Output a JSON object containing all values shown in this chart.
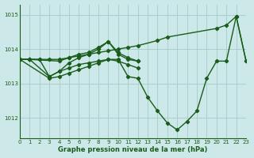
{
  "title": "Graphe pression niveau de la mer (hPa)",
  "bg_color": "#cce8e8",
  "grid_color": "#aacfcf",
  "line_color": "#1a5c1a",
  "xlim": [
    0,
    23
  ],
  "ylim": [
    1011.4,
    1015.3
  ],
  "yticks": [
    1012,
    1013,
    1014,
    1015
  ],
  "xticks": [
    0,
    1,
    2,
    3,
    4,
    5,
    6,
    7,
    8,
    9,
    10,
    11,
    12,
    13,
    14,
    15,
    16,
    17,
    18,
    19,
    20,
    21,
    22,
    23
  ],
  "series": [
    {
      "x": [
        0,
        1,
        2,
        3,
        4,
        5,
        6,
        7,
        8,
        9,
        10,
        11,
        12,
        14,
        15,
        20,
        21,
        22,
        23
      ],
      "y": [
        1013.7,
        1013.7,
        1013.7,
        1013.7,
        1013.7,
        1013.75,
        1013.8,
        1013.85,
        1013.9,
        1013.95,
        1014.0,
        1014.05,
        1014.1,
        1014.25,
        1014.35,
        1014.6,
        1014.7,
        1014.95,
        1013.65
      ]
    },
    {
      "x": [
        0,
        1,
        2,
        3,
        4,
        5,
        6,
        7,
        8,
        9,
        10,
        11,
        12,
        13,
        14,
        15,
        16,
        17,
        18,
        19,
        20,
        21,
        22,
        23
      ],
      "y": [
        1013.7,
        1013.7,
        1013.7,
        1013.2,
        1013.35,
        1013.45,
        1013.55,
        1013.6,
        1013.65,
        1013.7,
        1013.7,
        1013.2,
        1013.15,
        1012.6,
        1012.2,
        1011.85,
        1011.65,
        1011.9,
        1012.2,
        1013.15,
        1013.65,
        1013.65,
        1014.95,
        1013.65
      ]
    },
    {
      "x": [
        0,
        1,
        3,
        4,
        5,
        6,
        7,
        8,
        9,
        10,
        11,
        12
      ],
      "y": [
        1013.7,
        1013.7,
        1013.2,
        1013.35,
        1013.6,
        1013.75,
        1013.85,
        1014.0,
        1014.22,
        1013.85,
        1013.7,
        1013.65
      ]
    },
    {
      "x": [
        0,
        1,
        4,
        5,
        6,
        7,
        8,
        9,
        10,
        11,
        12
      ],
      "y": [
        1013.7,
        1013.7,
        1013.65,
        1013.75,
        1013.85,
        1013.9,
        1014.05,
        1014.22,
        1013.9,
        1013.75,
        1013.65
      ]
    },
    {
      "x": [
        0,
        3,
        4,
        5,
        6,
        7,
        8,
        9,
        10,
        11,
        12
      ],
      "y": [
        1013.7,
        1013.15,
        1013.2,
        1013.3,
        1013.4,
        1013.5,
        1013.6,
        1013.7,
        1013.65,
        1013.55,
        1013.45
      ]
    }
  ]
}
